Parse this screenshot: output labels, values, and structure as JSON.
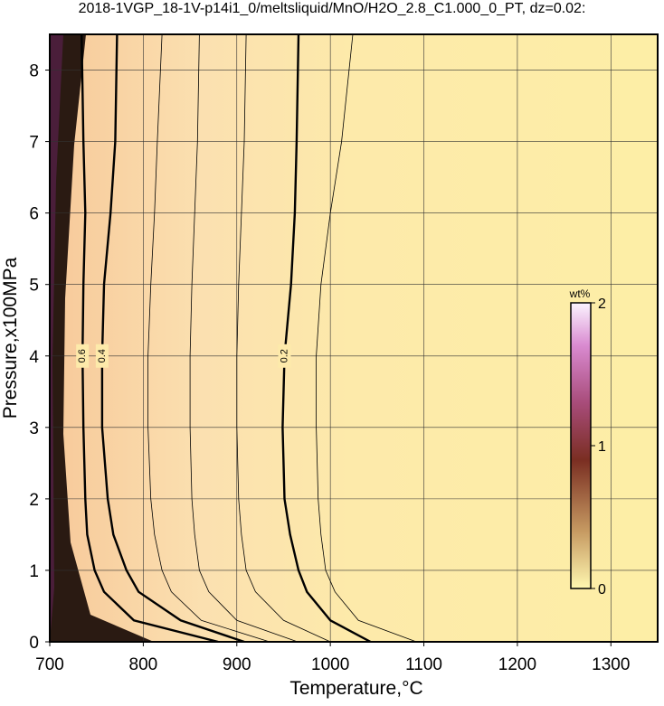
{
  "chart_data": {
    "type": "contour",
    "title": "2018-1VGP_18-1V-p14i1_0/meltsliquid/MnO/H2O_2.8_C1.000_0_PT, dz=0.02:",
    "xlabel": "Temperature,°C",
    "ylabel": "Pressure,x100MPa",
    "xlim": [
      700,
      1350
    ],
    "ylim": [
      0,
      8.5
    ],
    "xticks": [
      700,
      800,
      900,
      1000,
      1100,
      1200,
      1300
    ],
    "yticks": [
      0,
      1,
      2,
      3,
      4,
      5,
      6,
      7,
      8
    ],
    "grid": true,
    "colorbar": {
      "label": "wt%",
      "lim": [
        0,
        2
      ],
      "ticks": [
        0,
        1,
        2
      ]
    },
    "contours": [
      {
        "level": 0.18,
        "y": [
          0,
          0.3,
          0.7,
          1,
          1.5,
          2,
          3,
          4,
          5,
          6,
          7,
          8.5
        ],
        "x": [
          1092,
          1030,
          1005,
          995,
          990,
          987,
          985,
          985,
          990,
          1000,
          1012,
          1024
        ]
      },
      {
        "level": 0.2,
        "y": [
          0,
          0.3,
          0.7,
          1,
          1.5,
          2,
          3,
          4,
          5,
          6,
          7,
          8.5
        ],
        "x": [
          1043,
          1000,
          975,
          966,
          957,
          951,
          949,
          951,
          958,
          962,
          964,
          966
        ]
      },
      {
        "level": 0.24,
        "y": [
          0,
          0.3,
          0.7,
          1,
          1.5,
          2,
          3,
          4,
          5,
          6,
          7,
          8.5
        ],
        "x": [
          1000,
          950,
          920,
          910,
          905,
          902,
          900,
          900,
          902,
          905,
          908,
          910
        ]
      },
      {
        "level": 0.28,
        "y": [
          0,
          0.3,
          0.7,
          1,
          1.5,
          2,
          3,
          4,
          5,
          6,
          7,
          8.5
        ],
        "x": [
          965,
          900,
          870,
          860,
          855,
          852,
          850,
          850,
          852,
          855,
          858,
          860
        ]
      },
      {
        "level": 0.32,
        "y": [
          0,
          0.3,
          0.7,
          1,
          1.5,
          2,
          3,
          4,
          5,
          6,
          7,
          8.5
        ],
        "x": [
          935,
          862,
          830,
          820,
          812,
          808,
          805,
          805,
          808,
          812,
          815,
          820
        ]
      },
      {
        "level": 0.4,
        "y": [
          0,
          0.3,
          0.7,
          1,
          1.5,
          2,
          3,
          4,
          5,
          6,
          7,
          8.5
        ],
        "x": [
          908,
          840,
          795,
          782,
          768,
          762,
          756,
          756,
          758,
          765,
          770,
          772
        ]
      },
      {
        "level": 0.6,
        "y": [
          0,
          0.3,
          0.7,
          1,
          1.5,
          2,
          3,
          4,
          5,
          6,
          7,
          8.5
        ],
        "x": [
          880,
          790,
          758,
          748,
          740,
          738,
          736,
          735,
          736,
          738,
          736,
          734
        ]
      }
    ]
  }
}
